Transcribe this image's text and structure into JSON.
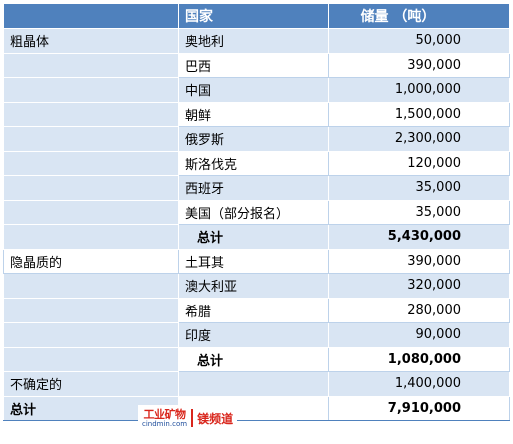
{
  "header": {
    "col1": "",
    "col2": "国家",
    "col3": "储量 （吨）"
  },
  "rows": [
    {
      "category": "粗晶体",
      "country": "奥地利",
      "amount": "50,000"
    },
    {
      "category": "",
      "country": "巴西",
      "amount": "390,000"
    },
    {
      "category": "",
      "country": "中国",
      "amount": "1,000,000"
    },
    {
      "category": "",
      "country": "朝鲜",
      "amount": "1,500,000"
    },
    {
      "category": "",
      "country": "俄罗斯",
      "amount": "2,300,000"
    },
    {
      "category": "",
      "country": "斯洛伐克",
      "amount": "120,000"
    },
    {
      "category": "",
      "country": "西班牙",
      "amount": "35,000"
    },
    {
      "category": "",
      "country": "美国（部分报名）",
      "amount": "35,000"
    },
    {
      "category": "",
      "country": "总计",
      "amount": "5,430,000"
    },
    {
      "category": "隐晶质的",
      "country": "土耳其",
      "amount": "390,000"
    },
    {
      "category": "",
      "country": "澳大利亚",
      "amount": "320,000"
    },
    {
      "category": "",
      "country": "希腊",
      "amount": "280,000"
    },
    {
      "category": "",
      "country": "印度",
      "amount": "90,000"
    },
    {
      "category": "",
      "country": "总计",
      "amount": "1,080,000"
    },
    {
      "category": "不确定的",
      "country": "",
      "amount": "1,400,000"
    },
    {
      "category": "总计",
      "country": "",
      "amount": "7,910,000"
    }
  ],
  "watermark": {
    "brand": "工业矿物",
    "site": "cindmin.com",
    "channel": "镁频道"
  }
}
